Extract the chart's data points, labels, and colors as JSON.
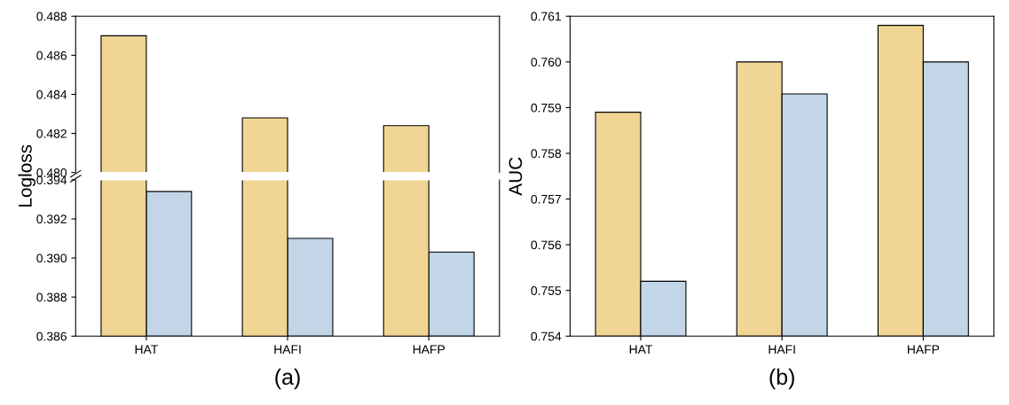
{
  "chart_data": [
    {
      "type": "bar",
      "categories": [
        null,
        null,
        null
      ],
      "tick_labels": "y",
      "series": [
        {
          "color": "#f0d595",
          "values": [
            0.487,
            0.4828,
            0.4824
          ]
        },
        {
          "color": "#c3d6e8",
          "values": [
            null,
            null,
            null
          ]
        }
      ],
      "ylim": [
        0.48,
        0.488
      ],
      "yticks": [
        {
          "value": 0.48,
          "label": "0.480"
        },
        {
          "value": 0.482,
          "label": "0.482"
        },
        {
          "value": 0.484,
          "label": "0.484"
        },
        {
          "value": 0.486,
          "label": "0.486"
        },
        {
          "value": 0.488,
          "label": "0.488"
        }
      ],
      "grid": false
    },
    {
      "type": "bar",
      "xlabel": "(a)",
      "ylabel": "Logloss",
      "categories": [
        "HAT",
        "HAFI",
        "HAFP"
      ],
      "series": [
        {
          "color": "#f0d595",
          "values": [
            null,
            null,
            null
          ]
        },
        {
          "color": "#c3d6e8",
          "values": [
            0.3934,
            0.391,
            0.3903
          ]
        }
      ],
      "ylim": [
        0.386,
        0.394
      ],
      "yticks": [
        {
          "value": 0.386,
          "label": "0.386"
        },
        {
          "value": 0.388,
          "label": "0.388"
        },
        {
          "value": 0.39,
          "label": "0.390"
        },
        {
          "value": 0.392,
          "label": "0.392"
        },
        {
          "value": 0.394,
          "label": "0.394"
        }
      ],
      "grid": false
    },
    {
      "type": "bar",
      "xlabel": "(b)",
      "ylabel": "AUC",
      "categories": [
        "HAT",
        "HAFI",
        "HAFP"
      ],
      "series": [
        {
          "color": "#f0d595",
          "values": [
            0.7589,
            0.76,
            0.7608
          ]
        },
        {
          "color": "#c3d6e8",
          "values": [
            0.7552,
            0.7593,
            0.76
          ]
        }
      ],
      "ylim": [
        0.754,
        0.761
      ],
      "yticks": [
        {
          "value": 0.754,
          "label": "0.754"
        },
        {
          "value": 0.755,
          "label": "0.755"
        },
        {
          "value": 0.756,
          "label": "0.756"
        },
        {
          "value": 0.757,
          "label": "0.757"
        },
        {
          "value": 0.758,
          "label": "0.758"
        },
        {
          "value": 0.759,
          "label": "0.759"
        },
        {
          "value": 0.76,
          "label": "0.760"
        },
        {
          "value": 0.761,
          "label": "0.761"
        }
      ],
      "grid": false
    }
  ]
}
